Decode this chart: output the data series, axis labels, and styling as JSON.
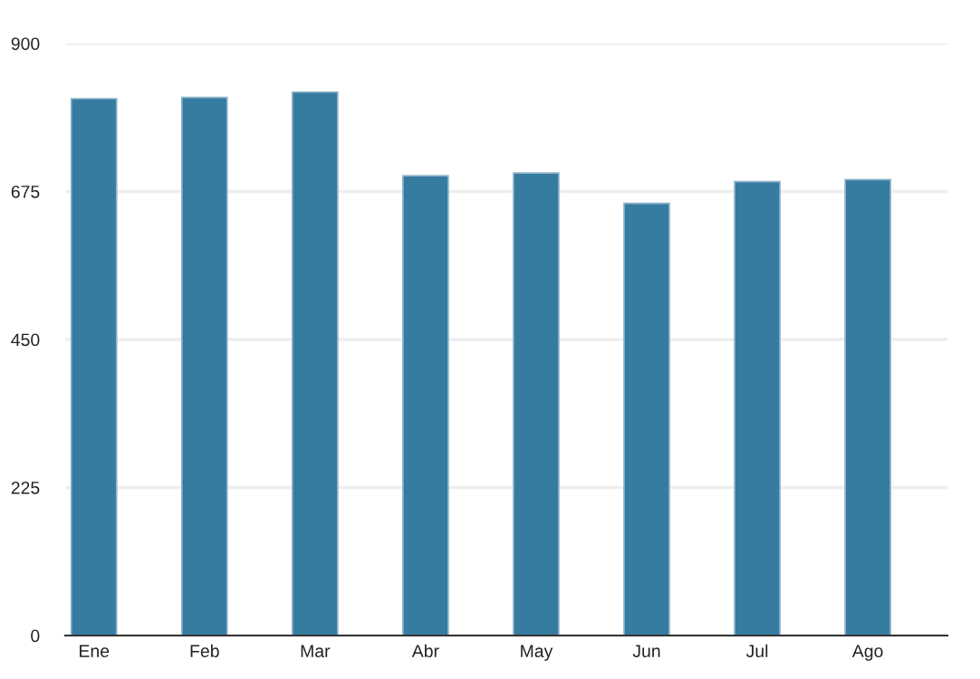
{
  "chart_data": {
    "type": "bar",
    "categories": [
      "Ene",
      "Feb",
      "Mar",
      "Abr",
      "May",
      "Jun",
      "Jul",
      "Ago"
    ],
    "values": [
      816,
      818,
      826,
      699,
      703,
      657,
      690,
      693
    ],
    "color": "#367ba0",
    "ylim": [
      0,
      900
    ],
    "yticks": [
      0,
      225,
      450,
      675,
      900
    ],
    "grid": "y"
  }
}
